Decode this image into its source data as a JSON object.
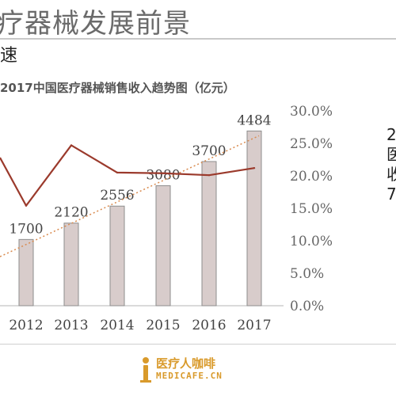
{
  "slide": {
    "title": "疗器械发展前景",
    "subtitle": "速",
    "side_text": [
      "2",
      "医",
      "收",
      "7"
    ]
  },
  "logo": {
    "name": "医疗人咖啡",
    "sub": "MEDICAFE.CN"
  },
  "colors": {
    "bar_fill": "#d8cccb",
    "bar_stroke": "#8e8e8e",
    "line": "#9b3a2c",
    "trend": "#d98a4e"
  },
  "chart_data": {
    "type": "bar",
    "title": "2017中国医疗器械销售收入趋势图（亿元）",
    "xlabel": "",
    "ylabel": "",
    "categories": [
      "2012",
      "2013",
      "2014",
      "2015",
      "2016",
      "2017"
    ],
    "series": [
      {
        "values": [
          1700,
          2120,
          2556,
          3080,
          3700,
          4484
        ]
      }
    ],
    "line_series": {
      "axis": "right",
      "values_percent": [
        15.4,
        24.7,
        20.5,
        20.4,
        20.1,
        21.2
      ],
      "leading_from_left_percent": 22.8
    },
    "trendline": {
      "style": "dotted",
      "from": 1700,
      "to": 4484
    },
    "y_right": {
      "ticks": [
        "0.0%",
        "5.0%",
        "10.0%",
        "15.0%",
        "20.0%",
        "25.0%",
        "30.0%"
      ],
      "range": [
        0,
        30
      ]
    },
    "y_left_range": [
      0,
      5000
    ],
    "data_labels": [
      "1700",
      "2120",
      "2556",
      "3080",
      "3700",
      "4484"
    ],
    "grid": false,
    "legend": "none"
  }
}
